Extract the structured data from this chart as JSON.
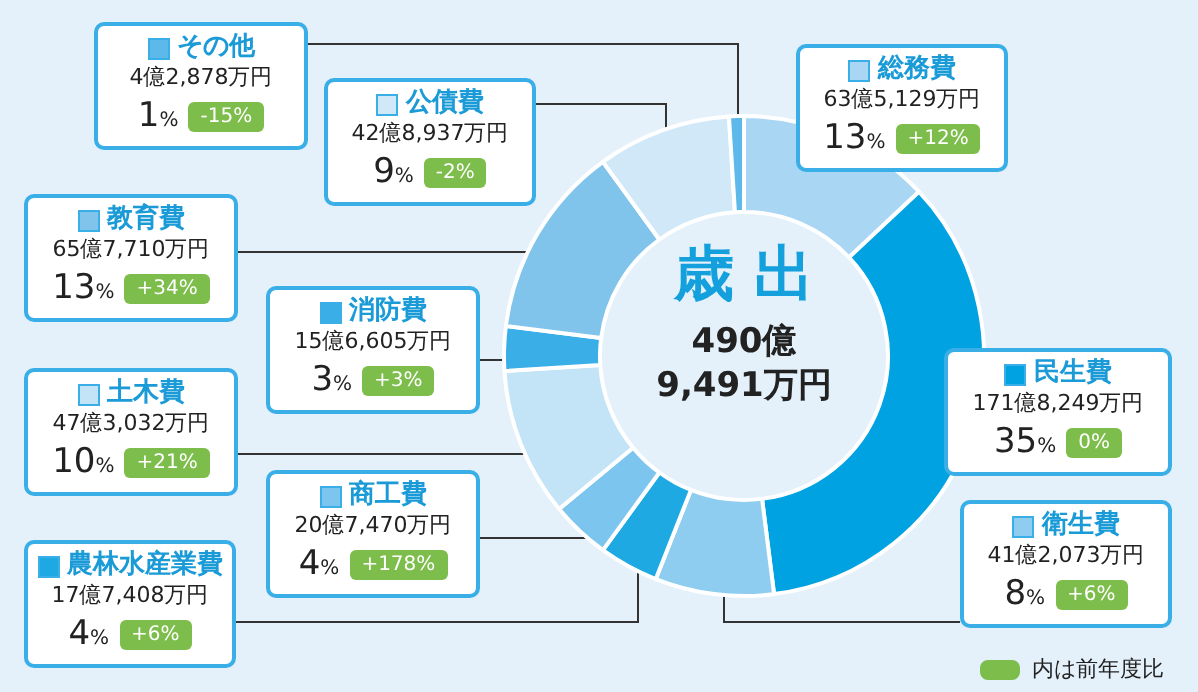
{
  "chart_data": {
    "type": "donut",
    "legend": "left",
    "title": "歳 出",
    "subtitle": "490億\n9,491万円",
    "categories": [
      "総務費",
      "民生費",
      "衛生費",
      "農林水産業費",
      "商工費",
      "土木費",
      "消防費",
      "教育費",
      "公債費",
      "その他"
    ],
    "values": [
      13,
      35,
      8,
      4,
      4,
      10,
      3,
      13,
      9,
      1
    ],
    "value_labels": [
      "13%",
      "35%",
      "8%",
      "4%",
      "4%",
      "10%",
      "3%",
      "13%",
      "9%",
      "1%"
    ],
    "colors": [
      "#a9d6f3",
      "#00a2e1",
      "#8fcdf0",
      "#1fa9e2",
      "#7cc5ee",
      "#c3e3f7",
      "#3aaee6",
      "#80c4ec",
      "#d1e8f8",
      "#5cb9ea"
    ],
    "annotations": [
      "63億5,129万円",
      "171億8,249万円",
      "41億2,073万円",
      "17億7,408万円",
      "20億7,470万円",
      "47億3,032万円",
      "15億6,605万円",
      "65億7,710万円",
      "42億8,937万円",
      "4億2,878万円",
      "+12%",
      "0%",
      "+6%",
      "+6%",
      "+178%",
      "+21%",
      "+3%",
      "+34%",
      "-2%",
      "-15%",
      "内は前年度比"
    ]
  }
}
